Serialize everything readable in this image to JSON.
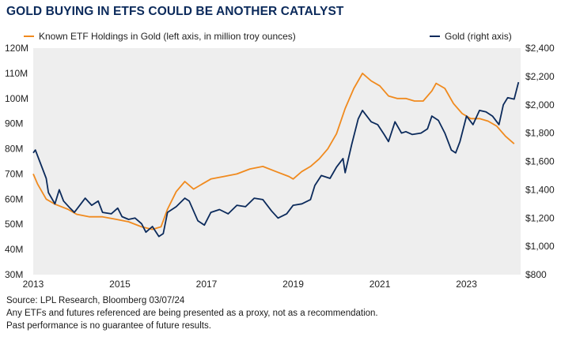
{
  "title": "GOLD BUYING IN ETFS COULD BE ANOTHER CATALYST",
  "footnotes": {
    "source": "Source: LPL Research, Bloomberg 03/07/24",
    "note1": "Any ETFs and futures referenced are being presented as a proxy, not as a recommendation.",
    "note2": "Past performance is no guarantee of future results."
  },
  "colors": {
    "etf": "#f08a1e",
    "gold": "#0b2a5b",
    "plot_bg": "#eeeeee",
    "title": "#0b2a5b"
  },
  "chart_data": {
    "type": "line",
    "title": "GOLD BUYING IN ETFS COULD BE ANOTHER CATALYST",
    "legend_position": "top",
    "grid": false,
    "x_range": [
      2013,
      2024.25
    ],
    "x_ticks": [
      2013,
      2015,
      2017,
      2019,
      2021,
      2023
    ],
    "x_tick_labels": [
      "2013",
      "2015",
      "2017",
      "2019",
      "2021",
      "2023"
    ],
    "left_axis": {
      "range": [
        30,
        120
      ],
      "ticks": [
        30,
        40,
        50,
        60,
        70,
        80,
        90,
        100,
        110,
        120
      ],
      "tick_labels": [
        "30M",
        "40M",
        "50M",
        "60M",
        "70M",
        "80M",
        "90M",
        "100M",
        "110M",
        "120M"
      ]
    },
    "right_axis": {
      "range": [
        800,
        2400
      ],
      "ticks": [
        800,
        1000,
        1200,
        1400,
        1600,
        1800,
        2000,
        2200,
        2400
      ],
      "tick_labels": [
        "$800",
        "$1,000",
        "$1,200",
        "$1,400",
        "$1,600",
        "$1,800",
        "$2,000",
        "$2,200",
        "$2,400"
      ]
    },
    "series": [
      {
        "name": "Known ETF Holdings in Gold (left axis, in million troy ounces)",
        "axis": "left",
        "x": [
          2013.0,
          2013.1,
          2013.3,
          2013.5,
          2013.8,
          2014.0,
          2014.3,
          2014.6,
          2014.9,
          2015.2,
          2015.5,
          2015.75,
          2015.95,
          2016.1,
          2016.3,
          2016.5,
          2016.7,
          2016.9,
          2017.1,
          2017.4,
          2017.7,
          2018.0,
          2018.3,
          2018.6,
          2018.9,
          2019.0,
          2019.2,
          2019.4,
          2019.6,
          2019.8,
          2020.0,
          2020.2,
          2020.4,
          2020.6,
          2020.8,
          2021.0,
          2021.2,
          2021.4,
          2021.6,
          2021.8,
          2022.0,
          2022.2,
          2022.3,
          2022.5,
          2022.7,
          2022.9,
          2023.1,
          2023.3,
          2023.5,
          2023.7,
          2023.9,
          2024.1
        ],
        "values": [
          70,
          66,
          60,
          58,
          56,
          54,
          53,
          53,
          52,
          51,
          49,
          48,
          49,
          56,
          63,
          67,
          64,
          66,
          68,
          69,
          70,
          72,
          73,
          71,
          69,
          68,
          71,
          73,
          76,
          80,
          86,
          96,
          104,
          110,
          107,
          105,
          101,
          100,
          100,
          99,
          99,
          103,
          106,
          104,
          98,
          94,
          92,
          92,
          91,
          89,
          85,
          82
        ]
      },
      {
        "name": "Gold (right axis)",
        "axis": "right",
        "x": [
          2013.0,
          2013.05,
          2013.15,
          2013.3,
          2013.35,
          2013.5,
          2013.6,
          2013.7,
          2013.85,
          2013.95,
          2014.1,
          2014.2,
          2014.35,
          2014.5,
          2014.6,
          2014.8,
          2014.95,
          2015.05,
          2015.2,
          2015.35,
          2015.5,
          2015.6,
          2015.75,
          2015.9,
          2016.0,
          2016.1,
          2016.3,
          2016.5,
          2016.6,
          2016.8,
          2016.95,
          2017.1,
          2017.3,
          2017.5,
          2017.7,
          2017.9,
          2018.1,
          2018.3,
          2018.5,
          2018.65,
          2018.85,
          2019.0,
          2019.2,
          2019.4,
          2019.5,
          2019.65,
          2019.85,
          2020.0,
          2020.15,
          2020.2,
          2020.35,
          2020.5,
          2020.6,
          2020.8,
          2020.95,
          2021.1,
          2021.2,
          2021.35,
          2021.5,
          2021.6,
          2021.75,
          2021.95,
          2022.1,
          2022.2,
          2022.35,
          2022.5,
          2022.65,
          2022.75,
          2022.85,
          2023.0,
          2023.15,
          2023.3,
          2023.45,
          2023.6,
          2023.75,
          2023.85,
          2023.95,
          2024.1,
          2024.2
        ],
        "values": [
          1660,
          1680,
          1600,
          1480,
          1380,
          1300,
          1400,
          1320,
          1270,
          1240,
          1300,
          1340,
          1290,
          1320,
          1240,
          1230,
          1270,
          1210,
          1190,
          1200,
          1160,
          1100,
          1140,
          1070,
          1090,
          1240,
          1280,
          1340,
          1320,
          1180,
          1150,
          1240,
          1260,
          1230,
          1290,
          1280,
          1340,
          1330,
          1250,
          1200,
          1230,
          1290,
          1300,
          1330,
          1430,
          1500,
          1480,
          1560,
          1620,
          1520,
          1720,
          1900,
          1960,
          1880,
          1860,
          1790,
          1740,
          1880,
          1800,
          1810,
          1790,
          1800,
          1830,
          1920,
          1890,
          1800,
          1680,
          1660,
          1740,
          1920,
          1860,
          1960,
          1950,
          1920,
          1860,
          2000,
          2050,
          2040,
          2160
        ]
      }
    ]
  }
}
